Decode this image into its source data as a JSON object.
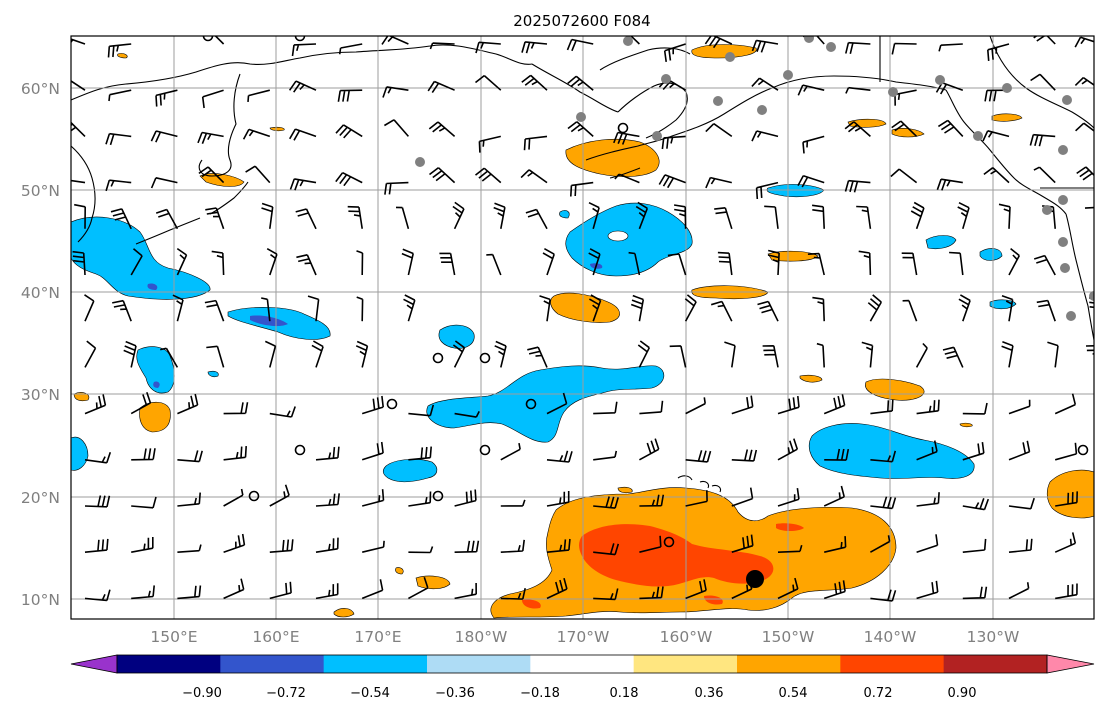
{
  "title": "2025072600 F084",
  "map": {
    "lat_labels": [
      "10°N",
      "20°N",
      "30°N",
      "40°N",
      "50°N",
      "60°N"
    ],
    "lon_labels": [
      "150°E",
      "160°E",
      "170°E",
      "180°W",
      "170°W",
      "160°W",
      "150°W",
      "140°W",
      "130°W"
    ],
    "grid": "on",
    "land_outline_color": "#000000",
    "grid_color": "#9e9e9e"
  },
  "colorbar": {
    "tick_labels": [
      "−0.90",
      "−0.72",
      "−0.54",
      "−0.36",
      "−0.18",
      "0.18",
      "0.36",
      "0.54",
      "0.72",
      "0.90"
    ],
    "colors": [
      "#9933cc",
      "#000080",
      "#3355cc",
      "#00bfff",
      "#aedcf5",
      "#ffffff",
      "#ffe680",
      "#ffa500",
      "#ff4500",
      "#b22222",
      "#ff88aa"
    ],
    "extend": "both"
  },
  "markers": {
    "station_color": "#808080",
    "storm_center_color": "#000000"
  }
}
